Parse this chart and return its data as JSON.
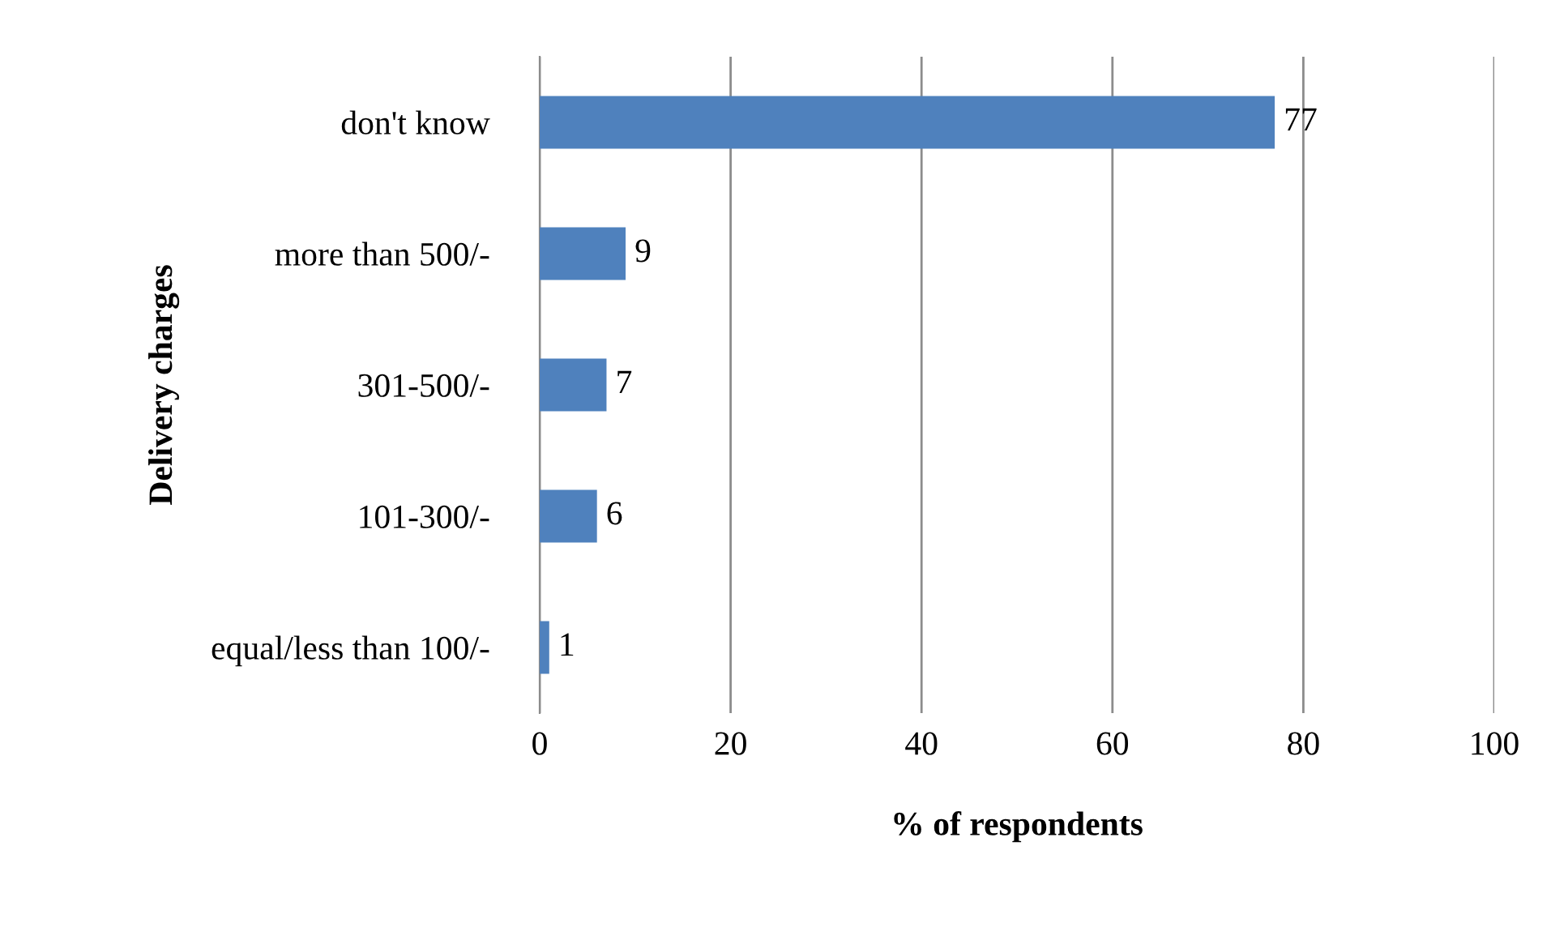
{
  "chart_data": {
    "type": "bar",
    "orientation": "horizontal",
    "xlabel": "% of respondents",
    "ylabel": "Delivery charges",
    "categories": [
      "don't know",
      "more than 500/-",
      "301-500/-",
      "101-300/-",
      "equal/less than 100/-"
    ],
    "values": [
      77,
      9,
      7,
      6,
      1
    ],
    "color": "#4f81bd",
    "xlim": [
      0,
      100
    ],
    "xticks": [
      0,
      20,
      40,
      60,
      80,
      100
    ],
    "grid": "x",
    "data_labels": true
  }
}
